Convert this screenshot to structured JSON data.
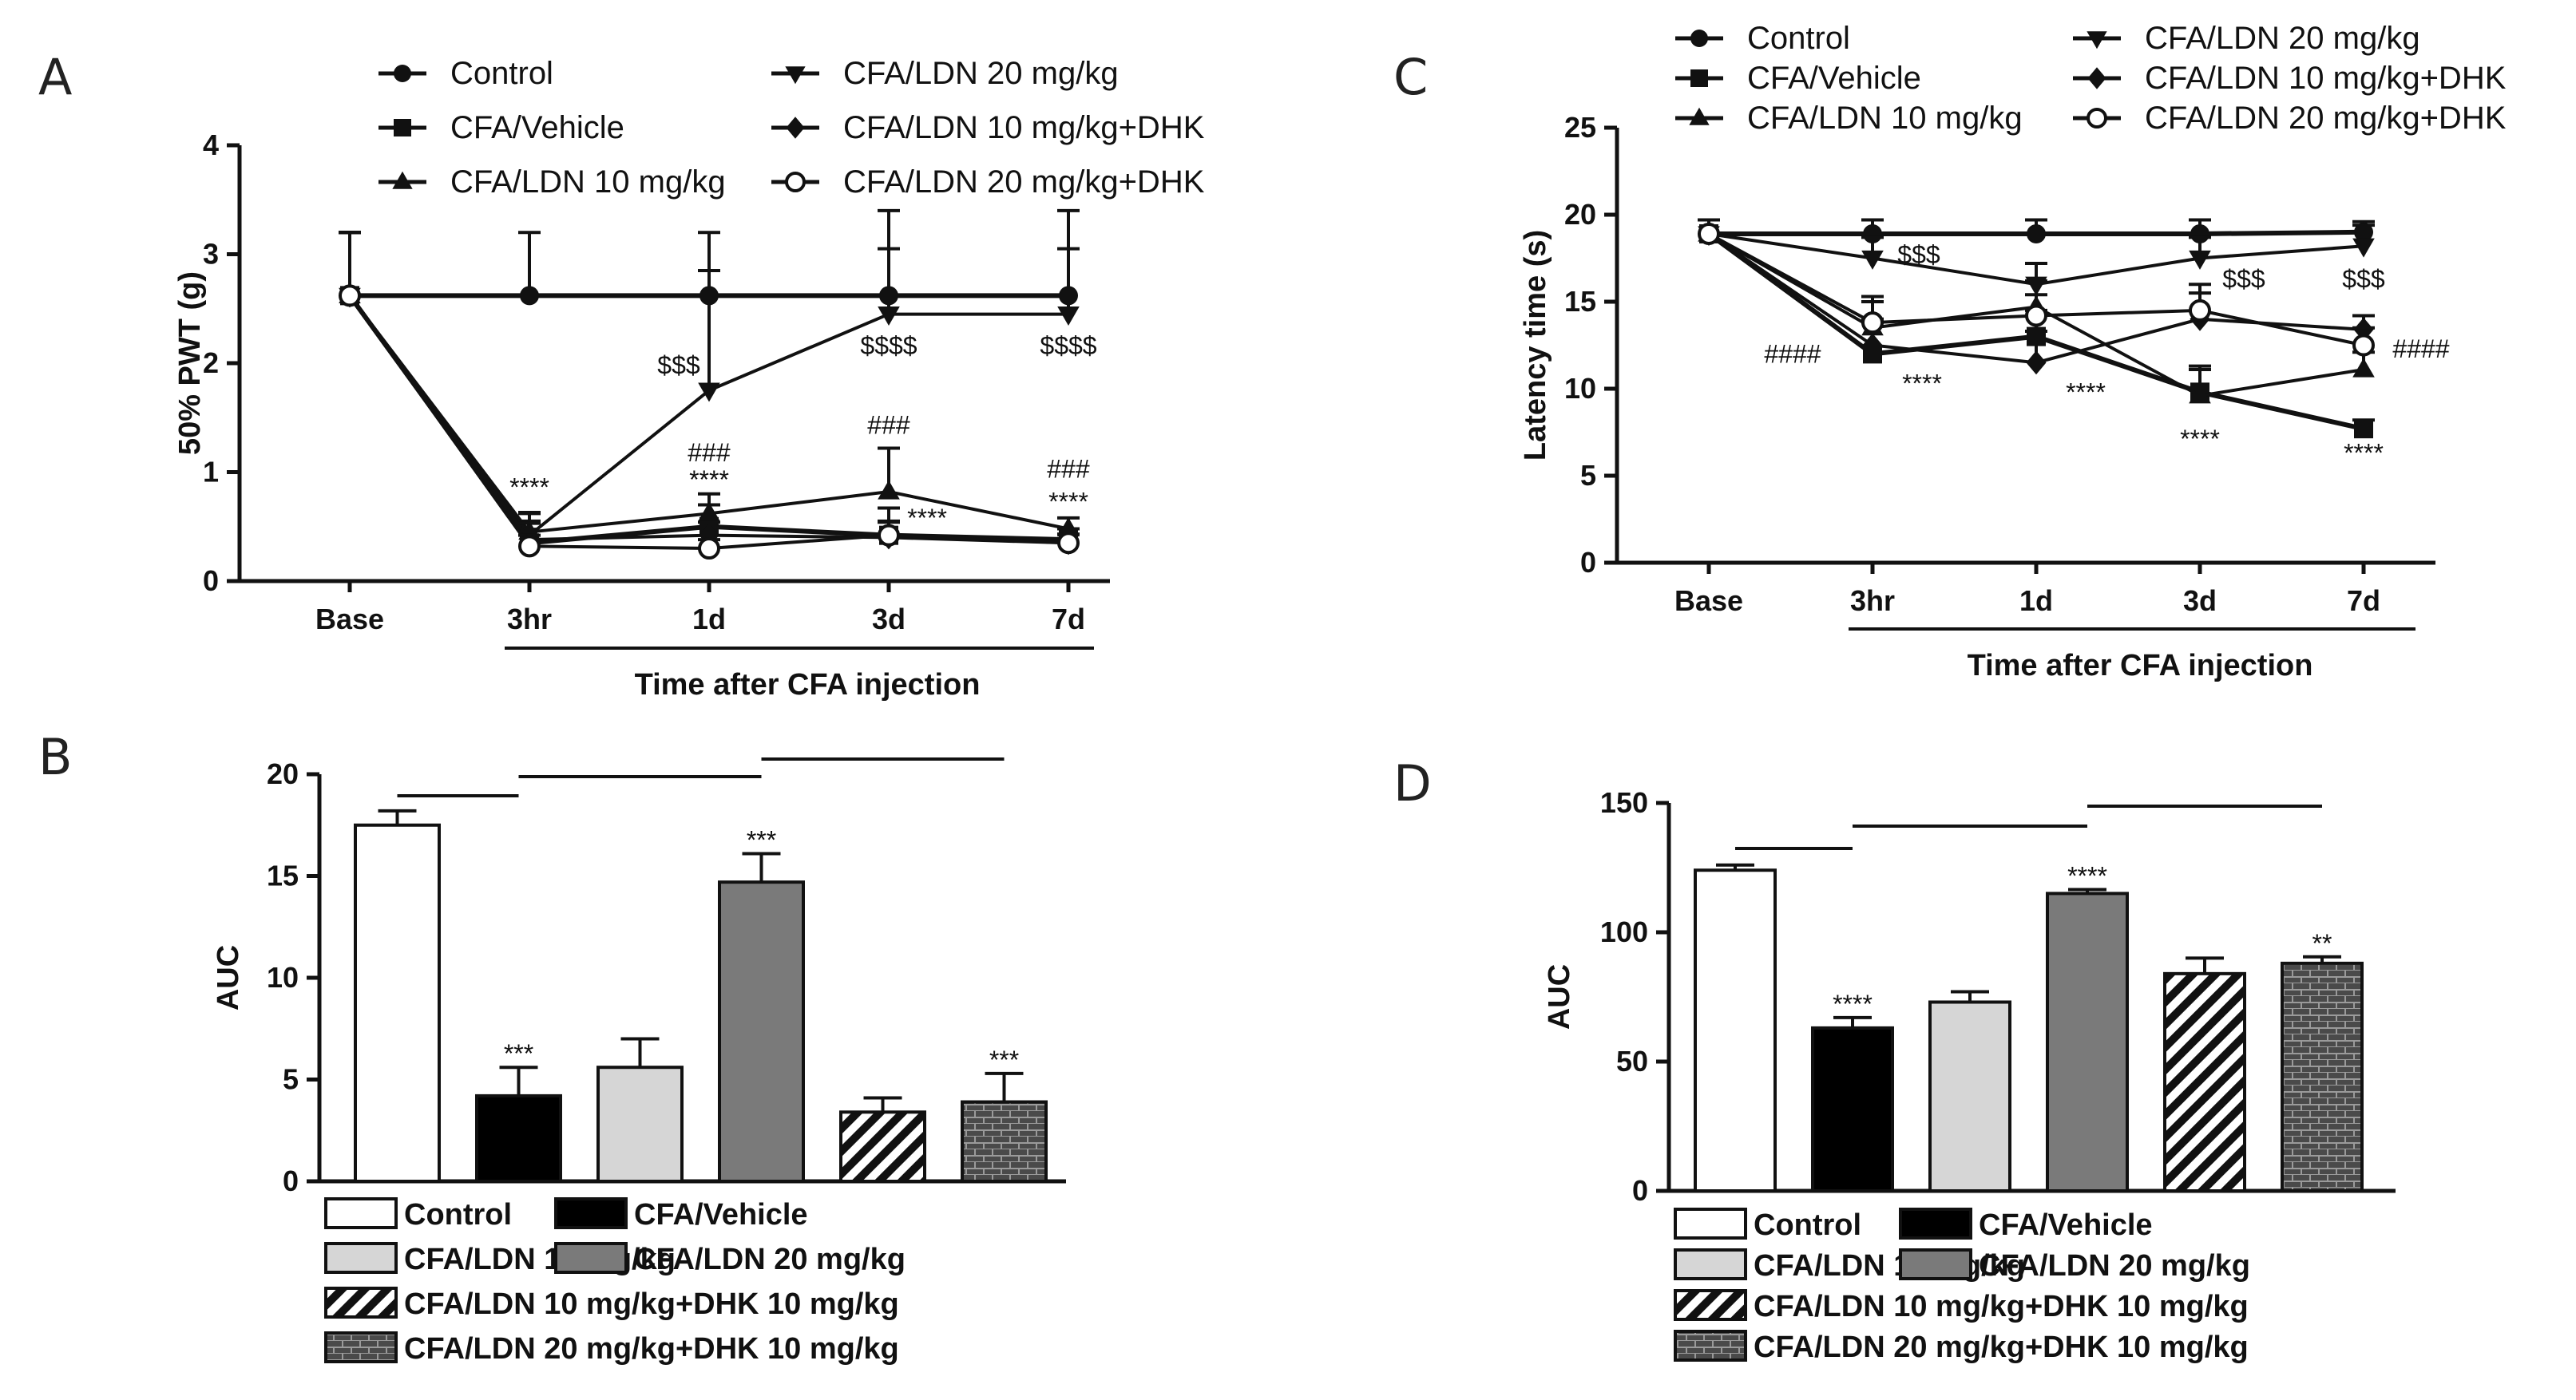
{
  "panels": [
    {
      "letter": "A",
      "chart_data": {
        "type": "line",
        "ylabel": "50% PWT (g)",
        "xlabel": "Time after CFA injection",
        "categories": [
          "Base",
          "3hr",
          "1d",
          "3d",
          "7d"
        ],
        "ylim": [
          0,
          4
        ],
        "yticks": [
          "0",
          "1",
          "2",
          "3",
          "4"
        ],
        "legend": [
          "Control",
          "CFA/Vehicle",
          "CFA/LDN 10 mg/kg",
          "CFA/LDN 20 mg/kg",
          "CFA/LDN 10 mg/kg+DHK",
          "CFA/LDN 20 mg/kg+DHK"
        ],
        "series": [
          {
            "name": "Control",
            "marker": "circle",
            "values": [
              2.62,
              2.62,
              2.62,
              2.62,
              2.62
            ],
            "err": [
              0.58,
              0.58,
              0.58,
              0.78,
              0.78
            ]
          },
          {
            "name": "CFA/Vehicle",
            "marker": "square",
            "values": [
              2.62,
              0.35,
              0.5,
              0.42,
              0.38
            ],
            "err": [
              0.58,
              0.2,
              0.2,
              0.25,
              0.1
            ]
          },
          {
            "name": "CFA/LDN 10 mg/kg",
            "marker": "triangle",
            "values": [
              2.62,
              0.45,
              0.62,
              0.82,
              0.48
            ],
            "err": [
              0.58,
              0.18,
              0.18,
              0.4,
              0.1
            ]
          },
          {
            "name": "CFA/LDN 20 mg/kg",
            "marker": "triangle-down",
            "values": [
              2.62,
              0.42,
              1.75,
              2.45,
              2.45
            ],
            "err": [
              0.58,
              0.2,
              1.1,
              0.6,
              0.6
            ]
          },
          {
            "name": "CFA/LDN 10 mg/kg+DHK",
            "marker": "diamond",
            "values": [
              2.62,
              0.38,
              0.42,
              0.4,
              0.35
            ],
            "err": [
              0.58,
              0.15,
              0.12,
              0.15,
              0.08
            ]
          },
          {
            "name": "CFA/LDN 20 mg/kg+DHK",
            "marker": "open-circle",
            "values": [
              2.62,
              0.32,
              0.3,
              0.42,
              0.35
            ],
            "err": [
              0.58,
              0.1,
              0.08,
              0.12,
              0.08
            ]
          }
        ],
        "annotations": [
          {
            "text": "****",
            "cat": 1,
            "y": 0.78
          },
          {
            "text": "$$$",
            "cat": 2,
            "y": 1.9,
            "dx": -38
          },
          {
            "text": "###",
            "cat": 2,
            "y": 1.1
          },
          {
            "text": "****",
            "cat": 2,
            "y": 0.85
          },
          {
            "text": "$$$$",
            "cat": 3,
            "y": 2.08
          },
          {
            "text": "###",
            "cat": 3,
            "y": 1.35
          },
          {
            "text": "****",
            "cat": 3,
            "y": 0.5,
            "dx": 48
          },
          {
            "text": "$$$$",
            "cat": 4,
            "y": 2.08
          },
          {
            "text": "###",
            "cat": 4,
            "y": 0.95
          },
          {
            "text": "****",
            "cat": 4,
            "y": 0.65
          }
        ]
      }
    },
    {
      "letter": "B",
      "chart_data": {
        "type": "bar",
        "ylabel": "AUC",
        "ylim": [
          0,
          20
        ],
        "yticks": [
          "0",
          "5",
          "10",
          "15",
          "20"
        ],
        "categories": [
          "Control",
          "CFA/Vehicle",
          "CFA/LDN 10 mg/kg",
          "CFA/LDN 20 mg/kg",
          "CFA/LDN 10 mg/kg+DHK 10 mg/kg",
          "CFA/LDN 20 mg/kg+DHK 10 mg/kg"
        ],
        "values": [
          17.5,
          4.2,
          5.6,
          14.7,
          3.4,
          3.9
        ],
        "err": [
          0.7,
          1.4,
          1.4,
          1.4,
          0.7,
          1.4
        ],
        "fills": [
          "white",
          "black",
          "lightgray",
          "gray",
          "stripes",
          "brick"
        ],
        "sig": [
          "",
          "***",
          "",
          "***",
          "",
          "***"
        ],
        "brackets": [
          [
            0,
            1
          ],
          [
            1,
            3
          ],
          [
            3,
            5
          ]
        ]
      }
    },
    {
      "letter": "C",
      "chart_data": {
        "type": "line",
        "ylabel": "Latency time (s)",
        "xlabel": "Time after CFA injection",
        "categories": [
          "Base",
          "3hr",
          "1d",
          "3d",
          "7d"
        ],
        "ylim": [
          0,
          25
        ],
        "yticks": [
          "0",
          "5",
          "10",
          "15",
          "20",
          "25"
        ],
        "legend": [
          "Control",
          "CFA/Vehicle",
          "CFA/LDN 10 mg/kg",
          "CFA/LDN 20 mg/kg",
          "CFA/LDN 10 mg/kg+DHK",
          "CFA/LDN 20 mg/kg+DHK"
        ],
        "series": [
          {
            "name": "Control",
            "marker": "circle",
            "values": [
              18.9,
              18.9,
              18.9,
              18.9,
              19.0
            ],
            "err": [
              0.8,
              0.8,
              0.8,
              0.8,
              0.6
            ]
          },
          {
            "name": "CFA/Vehicle",
            "marker": "square",
            "values": [
              18.9,
              12.0,
              13.0,
              9.8,
              7.7
            ],
            "err": [
              0.8,
              1.8,
              1.5,
              1.5,
              0.5
            ]
          },
          {
            "name": "CFA/LDN 10 mg/kg",
            "marker": "triangle",
            "values": [
              18.9,
              13.5,
              14.7,
              9.6,
              11.1
            ],
            "err": [
              0.8,
              1.5,
              1.5,
              1.5,
              1.0
            ]
          },
          {
            "name": "CFA/LDN 20 mg/kg",
            "marker": "triangle-down",
            "values": [
              18.9,
              17.5,
              16.0,
              17.5,
              18.2
            ],
            "err": [
              0.8,
              1.2,
              1.2,
              1.2,
              1.2
            ]
          },
          {
            "name": "CFA/LDN 10 mg/kg+DHK",
            "marker": "diamond",
            "values": [
              18.9,
              12.5,
              11.5,
              14.0,
              13.4
            ],
            "err": [
              0.8,
              1.5,
              1.8,
              1.5,
              0.8
            ]
          },
          {
            "name": "CFA/LDN 20 mg/kg+DHK",
            "marker": "open-circle",
            "values": [
              18.9,
              13.8,
              14.2,
              14.5,
              12.5
            ],
            "err": [
              0.8,
              1.5,
              1.2,
              1.5,
              1.0
            ]
          }
        ],
        "annotations": [
          {
            "text": "$$$",
            "cat": 1,
            "y": 17.2,
            "dx": 58
          },
          {
            "text": "####",
            "cat": 1,
            "y": 11.5,
            "dx": -100
          },
          {
            "text": "****",
            "cat": 1,
            "y": 9.8,
            "dx": 62
          },
          {
            "text": "****",
            "cat": 2,
            "y": 9.3,
            "dx": 62
          },
          {
            "text": "$$$",
            "cat": 3,
            "y": 15.8,
            "dx": 55
          },
          {
            "text": "****",
            "cat": 3,
            "y": 6.6
          },
          {
            "text": "$$$",
            "cat": 4,
            "y": 15.8
          },
          {
            "text": "####",
            "cat": 4,
            "y": 11.8,
            "dx": 72
          },
          {
            "text": "****",
            "cat": 4,
            "y": 5.8
          }
        ]
      }
    },
    {
      "letter": "D",
      "chart_data": {
        "type": "bar",
        "ylabel": "AUC",
        "ylim": [
          0,
          150
        ],
        "yticks": [
          "0",
          "50",
          "100",
          "150"
        ],
        "categories": [
          "Control",
          "CFA/Vehicle",
          "CFA/LDN 10 mg/kg",
          "CFA/LDN 20 mg/kg",
          "CFA/LDN 10 mg/kg+DHK 10 mg/kg",
          "CFA/LDN 20 mg/kg+DHK 10 mg/kg"
        ],
        "values": [
          124,
          63,
          73,
          115,
          84,
          88
        ],
        "err": [
          2,
          4,
          4,
          1.5,
          6,
          2.5
        ],
        "fills": [
          "white",
          "black",
          "lightgray",
          "gray",
          "stripes",
          "brick"
        ],
        "sig": [
          "",
          "****",
          "",
          "****",
          "",
          "**"
        ],
        "brackets": [
          [
            0,
            1
          ],
          [
            1,
            3
          ],
          [
            3,
            5
          ]
        ]
      }
    }
  ]
}
